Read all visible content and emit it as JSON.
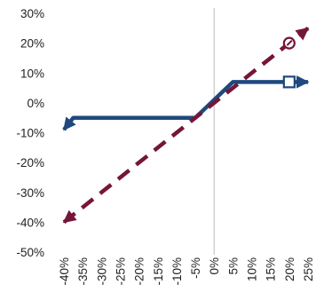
{
  "chart_data": {
    "type": "line",
    "title": "",
    "xlabel": "",
    "ylabel": "",
    "xlim": [
      -40,
      25
    ],
    "ylim": [
      -50,
      30
    ],
    "x_ticks": [
      "-40%",
      "-35%",
      "-30%",
      "-25%",
      "-20%",
      "-15%",
      "-10%",
      "-5%",
      "0%",
      "5%",
      "10%",
      "15%",
      "20%",
      "25%"
    ],
    "y_ticks": [
      "30%",
      "20%",
      "10%",
      "0%",
      "-10%",
      "-20%",
      "-30%",
      "-40%",
      "-50%"
    ],
    "grid": false,
    "legend": "none",
    "series": [
      {
        "color": "#1F497D",
        "style": "solid",
        "points": [
          [
            -40,
            -9
          ],
          [
            -37.5,
            -5
          ],
          [
            -5,
            -5
          ],
          [
            5,
            7
          ],
          [
            25,
            7
          ]
        ],
        "start_marker": "arrow",
        "end_marker": "arrow",
        "end_symbol": "square",
        "symbol_at": [
          20,
          7
        ]
      },
      {
        "color": "#76153A",
        "style": "dashed",
        "points": [
          [
            -40,
            -40
          ],
          [
            25,
            25
          ]
        ],
        "start_marker": "arrow",
        "end_marker": "arrow",
        "end_symbol": "male-symbol",
        "symbol_at": [
          20,
          20
        ]
      }
    ]
  }
}
